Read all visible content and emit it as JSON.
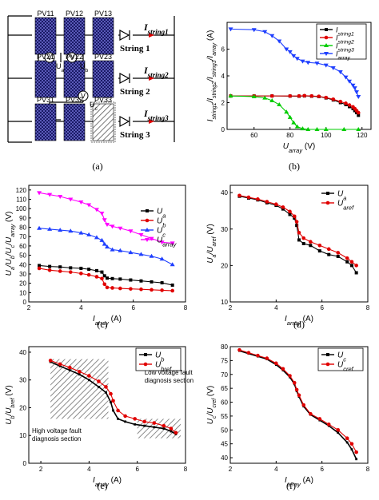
{
  "panel_labels": [
    "(a)",
    "(b)",
    "(c)",
    "(d)",
    "(e)",
    "(f)"
  ],
  "circuit": {
    "modules": [
      [
        "PV11",
        "PV12",
        "PV13"
      ],
      [
        "PV21",
        "PV22",
        "PV23"
      ],
      [
        "PV31",
        "PV32",
        "PV33"
      ]
    ],
    "strings": [
      "String 1",
      "String 2",
      "String 3"
    ],
    "currents": [
      "I",
      "string1",
      "string2",
      "string3"
    ],
    "voltmeters": [
      "V",
      "V",
      "V"
    ],
    "voltages": [
      "U",
      "a",
      "b",
      "c"
    ]
  },
  "colors": {
    "black": "#000000",
    "red": "#e00000",
    "green": "#00cc00",
    "blue": "#1f3fff",
    "magenta": "#ff00ff",
    "hatch": "#555555"
  },
  "chart_data": [
    {
      "id": "b",
      "type": "line",
      "xlabel": "U",
      "xlabel_sub": "array",
      "xunit": " (V)",
      "ylabel": "I",
      "ylabel_subs": [
        "string1",
        "string2",
        "string3",
        "array"
      ],
      "yunit": " (A)",
      "xlim": [
        45,
        125
      ],
      "ylim": [
        0,
        8
      ],
      "xticks": [
        60,
        80,
        100,
        120
      ],
      "yticks": [
        0,
        2,
        4,
        6
      ],
      "legend_position": "top-right",
      "series": [
        {
          "name": "I",
          "sub": "string1",
          "color": "#000000",
          "marker": "square",
          "x": [
            47,
            60,
            70,
            80,
            85,
            88,
            92,
            96,
            100,
            104,
            108,
            111,
            113,
            115,
            116,
            117,
            118
          ],
          "y": [
            2.5,
            2.5,
            2.5,
            2.49,
            2.48,
            2.5,
            2.48,
            2.45,
            2.35,
            2.2,
            2.0,
            1.85,
            1.7,
            1.55,
            1.4,
            1.25,
            1.05
          ]
        },
        {
          "name": "I",
          "sub": "string2",
          "color": "#e00000",
          "marker": "circle",
          "x": [
            47,
            60,
            70,
            80,
            85,
            88,
            92,
            96,
            100,
            104,
            108,
            111,
            113,
            115,
            116,
            117,
            118
          ],
          "y": [
            2.5,
            2.5,
            2.5,
            2.5,
            2.5,
            2.52,
            2.5,
            2.47,
            2.38,
            2.25,
            2.08,
            1.95,
            1.82,
            1.68,
            1.55,
            1.4,
            1.25
          ]
        },
        {
          "name": "I",
          "sub": "string3",
          "color": "#00cc00",
          "marker": "triangle-up",
          "x": [
            47,
            60,
            66,
            70,
            74,
            78,
            80,
            82,
            84,
            87,
            90,
            95,
            100,
            110,
            118
          ],
          "y": [
            2.5,
            2.45,
            2.35,
            2.15,
            1.85,
            1.3,
            0.9,
            0.5,
            0.2,
            0.05,
            0.0,
            0.0,
            0.0,
            0.0,
            0.0
          ]
        },
        {
          "name": "I",
          "sub": "array",
          "color": "#1f3fff",
          "marker": "triangle-down",
          "x": [
            47,
            60,
            66,
            70,
            74,
            78,
            80,
            82,
            84,
            87,
            90,
            95,
            100,
            104,
            108,
            111,
            113,
            115,
            116,
            117,
            118
          ],
          "y": [
            7.5,
            7.45,
            7.3,
            7.0,
            6.6,
            6.0,
            5.8,
            5.5,
            5.3,
            5.1,
            5.0,
            4.95,
            4.8,
            4.6,
            4.3,
            3.9,
            3.6,
            3.3,
            3.1,
            2.8,
            2.45
          ]
        }
      ]
    },
    {
      "id": "c",
      "type": "line",
      "xlabel": "I",
      "xlabel_sub": "array",
      "xunit": " (A)",
      "ylabel": "U",
      "ylabel_subs": [
        "a",
        "b",
        "c",
        "array"
      ],
      "yunit": " (V)",
      "xlim": [
        2,
        8
      ],
      "ylim": [
        0,
        125
      ],
      "xticks": [
        2,
        4,
        6,
        8
      ],
      "yticks": [
        0,
        10,
        20,
        30,
        40,
        50,
        60,
        70,
        80,
        90,
        100,
        110,
        120
      ],
      "legend_position": "right",
      "series": [
        {
          "name": "U",
          "sub": "a",
          "color": "#000000",
          "marker": "square",
          "x": [
            2.4,
            2.8,
            3.2,
            3.6,
            4.0,
            4.3,
            4.6,
            4.8,
            4.9,
            5.0,
            5.2,
            5.5,
            5.9,
            6.3,
            6.7,
            7.1,
            7.5
          ],
          "y": [
            39,
            38,
            37.5,
            36.5,
            36,
            35,
            33.5,
            32,
            28,
            25.5,
            25,
            24.5,
            23.5,
            22.5,
            21.5,
            20.5,
            18
          ]
        },
        {
          "name": "U",
          "sub": "b",
          "color": "#e00000",
          "marker": "circle",
          "x": [
            2.4,
            2.8,
            3.2,
            3.6,
            4.0,
            4.3,
            4.6,
            4.8,
            4.9,
            5.0,
            5.2,
            5.5,
            5.9,
            6.3,
            6.7,
            7.1,
            7.5
          ],
          "y": [
            36,
            34,
            33,
            32,
            30.5,
            29,
            27,
            25,
            19,
            15.5,
            15,
            14.5,
            14,
            13.5,
            13,
            12.5,
            12
          ]
        },
        {
          "name": "U",
          "sub": "c",
          "color": "#1f3fff",
          "marker": "triangle-up",
          "x": [
            2.4,
            2.8,
            3.2,
            3.6,
            4.0,
            4.3,
            4.6,
            4.8,
            4.9,
            5.0,
            5.2,
            5.5,
            5.9,
            6.3,
            6.7,
            7.1,
            7.5
          ],
          "y": [
            79,
            78,
            77,
            76,
            74,
            72,
            69,
            66,
            62,
            59,
            56,
            55,
            53,
            51,
            49,
            46,
            40
          ]
        },
        {
          "name": "U",
          "sub": "array",
          "color": "#ff00ff",
          "marker": "triangle-down",
          "x": [
            2.4,
            2.8,
            3.2,
            3.6,
            4.0,
            4.3,
            4.6,
            4.8,
            4.9,
            5.0,
            5.2,
            5.5,
            5.9,
            6.3,
            6.7,
            7.1,
            7.5
          ],
          "y": [
            117,
            115,
            113,
            110,
            107,
            104,
            99,
            95,
            88,
            83,
            81,
            79,
            76,
            72,
            68,
            64,
            63
          ]
        }
      ]
    },
    {
      "id": "d",
      "type": "line",
      "xlabel": "I",
      "xlabel_sub": "array",
      "xunit": " (A)",
      "ylabel": "U",
      "ylabel_subs": [
        "a",
        "aref"
      ],
      "yunit": " (V)",
      "xlim": [
        2,
        8
      ],
      "ylim": [
        10,
        42
      ],
      "xticks": [
        2,
        4,
        6,
        8
      ],
      "yticks": [
        10,
        20,
        30,
        40
      ],
      "legend_position": "top-right",
      "series": [
        {
          "name": "U",
          "sub": "a",
          "color": "#000000",
          "marker": "square",
          "x": [
            2.4,
            2.8,
            3.2,
            3.6,
            4.0,
            4.3,
            4.6,
            4.8,
            4.9,
            5.0,
            5.2,
            5.5,
            5.9,
            6.3,
            6.7,
            7.1,
            7.3,
            7.5
          ],
          "y": [
            39,
            38.5,
            38,
            37.2,
            36.5,
            35.5,
            34,
            33,
            31,
            27,
            26,
            25.5,
            24,
            23,
            22.5,
            21,
            20,
            18
          ]
        },
        {
          "name": "U",
          "sub": "aref",
          "color": "#e00000",
          "marker": "circle",
          "x": [
            2.4,
            2.8,
            3.2,
            3.6,
            4.0,
            4.3,
            4.6,
            4.8,
            4.9,
            5.0,
            5.2,
            5.5,
            5.9,
            6.3,
            6.7,
            7.1,
            7.3,
            7.5
          ],
          "y": [
            39.2,
            38.7,
            38.2,
            37.5,
            36.8,
            36,
            34.8,
            33.5,
            32,
            29,
            27.5,
            26.5,
            25.5,
            24.5,
            23.5,
            22,
            21,
            20
          ]
        }
      ]
    },
    {
      "id": "e",
      "type": "line",
      "xlabel": "I",
      "xlabel_sub": "array",
      "xunit": " (A)",
      "ylabel": "U",
      "ylabel_subs": [
        "b",
        "bref"
      ],
      "yunit": " (V)",
      "xlim": [
        1.5,
        8
      ],
      "ylim": [
        0,
        42
      ],
      "xticks": [
        2,
        4,
        6,
        8
      ],
      "yticks": [
        0,
        10,
        20,
        30,
        40
      ],
      "legend_position": "top-right",
      "annotations": [
        {
          "lines": [
            "High voltage fault",
            "diagnosis section"
          ],
          "xrange": [
            2.4,
            4.8
          ]
        },
        {
          "lines": [
            "Low voltage fault",
            "diagnosis section"
          ],
          "xrange": [
            6.0,
            7.8
          ]
        }
      ],
      "series": [
        {
          "name": "U",
          "sub": "b",
          "color": "#000000",
          "marker": "none",
          "x": [
            2.4,
            2.8,
            3.2,
            3.6,
            4.0,
            4.4,
            4.7,
            4.9,
            5.0,
            5.2,
            5.5,
            5.9,
            6.3,
            6.7,
            7.1,
            7.4,
            7.6
          ],
          "y": [
            36.5,
            35,
            33.5,
            32,
            30,
            27.5,
            25.5,
            22,
            19,
            16,
            15,
            14,
            13.5,
            13,
            12.5,
            11.5,
            10.5
          ]
        },
        {
          "name": "U",
          "sub": "bref",
          "color": "#e00000",
          "marker": "circle",
          "x": [
            2.4,
            2.8,
            3.2,
            3.6,
            4.0,
            4.4,
            4.7,
            4.9,
            5.0,
            5.2,
            5.5,
            5.9,
            6.3,
            6.7,
            7.1,
            7.4,
            7.6
          ],
          "y": [
            37,
            35.7,
            34.5,
            33,
            31.5,
            29.5,
            27.5,
            25,
            22.5,
            19,
            17,
            16,
            15,
            14.5,
            13.5,
            12.5,
            11
          ]
        }
      ]
    },
    {
      "id": "f",
      "type": "line",
      "xlabel": "I",
      "xlabel_sub": "array",
      "xunit": " (A)",
      "ylabel": "U",
      "ylabel_subs": [
        "c",
        "cref"
      ],
      "yunit": " (V)",
      "xlim": [
        2,
        8
      ],
      "ylim": [
        38,
        80
      ],
      "xticks": [
        2,
        4,
        6,
        8
      ],
      "yticks": [
        40,
        45,
        50,
        55,
        60,
        65,
        70,
        75,
        80
      ],
      "legend_position": "top-right",
      "series": [
        {
          "name": "U",
          "sub": "c",
          "color": "#000000",
          "marker": "none",
          "x": [
            2.4,
            2.8,
            3.2,
            3.6,
            4.0,
            4.3,
            4.6,
            4.8,
            4.9,
            5.0,
            5.2,
            5.5,
            5.9,
            6.3,
            6.7,
            7.1,
            7.3,
            7.5
          ],
          "y": [
            78.5,
            77.5,
            76.5,
            75.5,
            73.5,
            71.5,
            69,
            66.5,
            64,
            62,
            58.5,
            55.5,
            53.5,
            51.5,
            49,
            45.5,
            43,
            39.5
          ]
        },
        {
          "name": "U",
          "sub": "cref",
          "color": "#e00000",
          "marker": "circle",
          "x": [
            2.4,
            2.8,
            3.2,
            3.6,
            4.0,
            4.3,
            4.6,
            4.8,
            4.9,
            5.0,
            5.2,
            5.5,
            5.9,
            6.3,
            6.7,
            7.1,
            7.3,
            7.5
          ],
          "y": [
            78.8,
            77.8,
            76.8,
            75.8,
            74,
            72,
            69.5,
            67,
            64.5,
            62.5,
            59,
            55.8,
            54,
            52,
            50,
            47,
            45,
            42
          ]
        }
      ]
    }
  ]
}
